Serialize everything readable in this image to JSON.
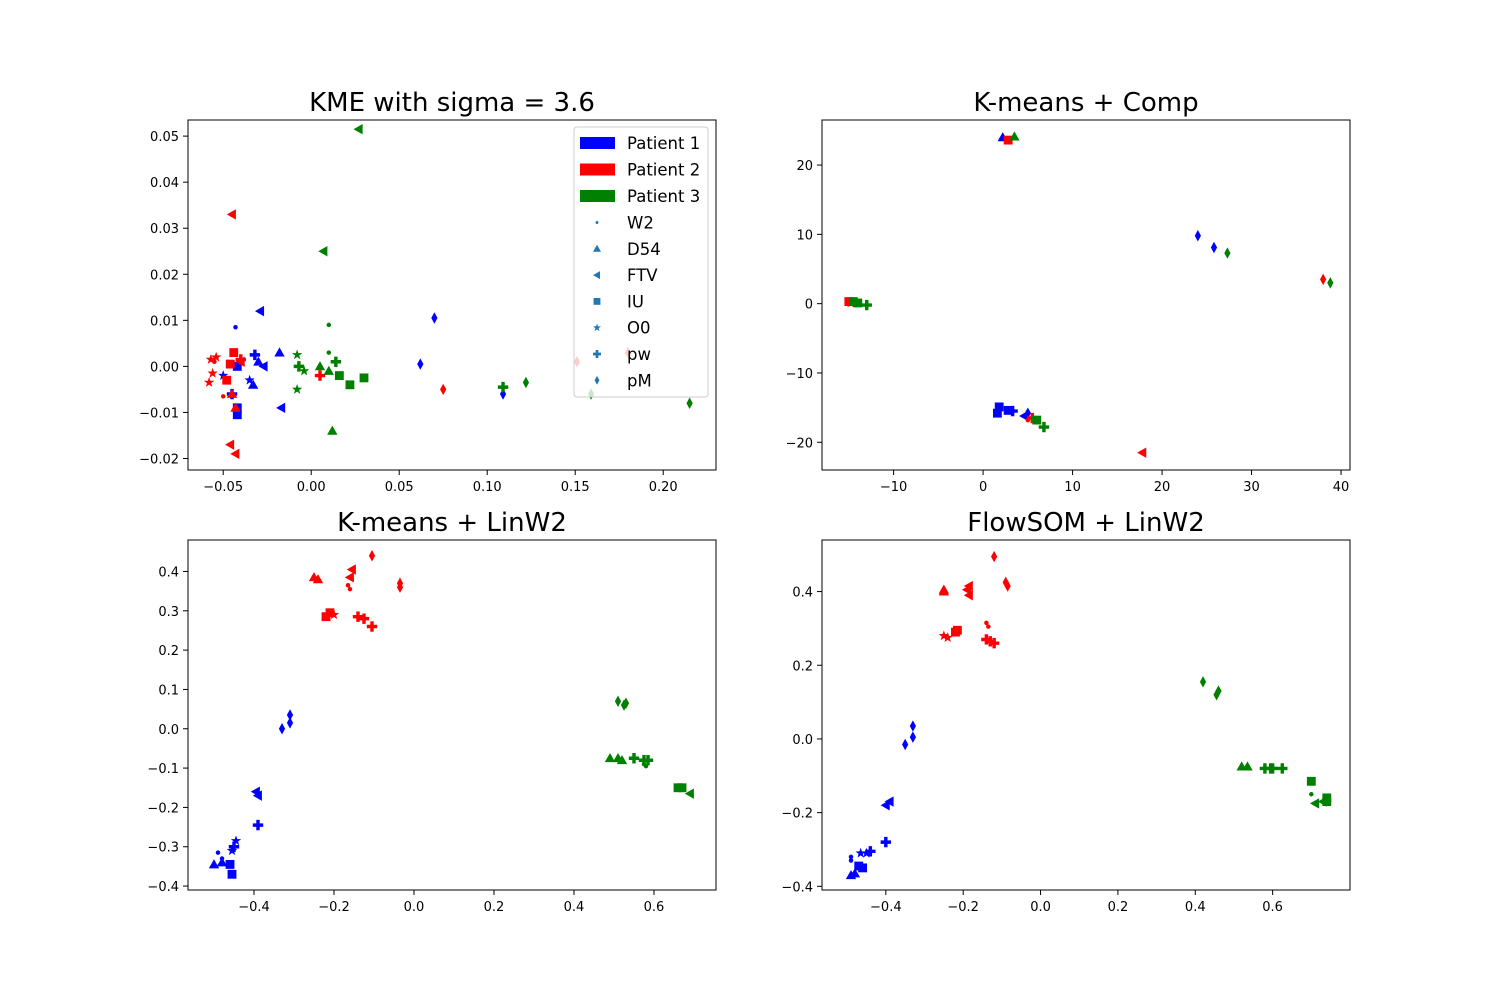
{
  "chart_data": [
    {
      "type": "scatter",
      "title": "KME with sigma = 3.6",
      "xlabel": "",
      "ylabel": "",
      "xlim": [
        -0.07,
        0.23
      ],
      "ylim": [
        -0.0225,
        0.0535
      ],
      "xticks": [
        -0.05,
        0.0,
        0.05,
        0.1,
        0.15,
        0.2
      ],
      "xtick_labels": [
        "−0.05",
        "0.00",
        "0.05",
        "0.10",
        "0.15",
        "0.20"
      ],
      "yticks": [
        -0.02,
        -0.01,
        0.0,
        0.01,
        0.02,
        0.03,
        0.04,
        0.05
      ],
      "ytick_labels": [
        "−0.02",
        "−0.01",
        "0.00",
        "0.01",
        "0.02",
        "0.03",
        "0.04",
        "0.05"
      ],
      "grid": false,
      "legend_position": "top-right",
      "points": [
        [
          "P1",
          "W2",
          -0.043,
          0.0085
        ],
        [
          "P1",
          "D54",
          -0.018,
          0.003
        ],
        [
          "P1",
          "D54",
          -0.03,
          0.001
        ],
        [
          "P1",
          "D54",
          -0.033,
          -0.004
        ],
        [
          "P1",
          "FTV",
          -0.029,
          0.012
        ],
        [
          "P1",
          "FTV",
          -0.017,
          -0.009
        ],
        [
          "P1",
          "FTV",
          -0.027,
          0.0
        ],
        [
          "P1",
          "IU",
          -0.042,
          -0.009
        ],
        [
          "P1",
          "IU",
          -0.042,
          -0.0105
        ],
        [
          "P1",
          "IU",
          -0.042,
          0.0
        ],
        [
          "P1",
          "O0",
          -0.05,
          -0.002
        ],
        [
          "P1",
          "O0",
          -0.035,
          -0.003
        ],
        [
          "P1",
          "pw",
          -0.032,
          0.0025
        ],
        [
          "P1",
          "pw",
          -0.045,
          -0.006
        ],
        [
          "P1",
          "pM",
          0.07,
          0.0105
        ],
        [
          "P1",
          "pM",
          0.062,
          0.0005
        ],
        [
          "P1",
          "pM",
          0.109,
          -0.006
        ],
        [
          "P2",
          "W2",
          -0.05,
          -0.0065
        ],
        [
          "P2",
          "W2",
          -0.055,
          0.001
        ],
        [
          "P2",
          "D54",
          -0.043,
          -0.009
        ],
        [
          "P2",
          "D54",
          -0.045,
          -0.006
        ],
        [
          "P2",
          "FTV",
          -0.045,
          0.033
        ],
        [
          "P2",
          "FTV",
          -0.046,
          -0.017
        ],
        [
          "P2",
          "FTV",
          -0.043,
          -0.019
        ],
        [
          "P2",
          "FTV",
          -0.04,
          0.001
        ],
        [
          "P2",
          "IU",
          -0.044,
          0.003
        ],
        [
          "P2",
          "IU",
          -0.046,
          0.0005
        ],
        [
          "P2",
          "IU",
          -0.048,
          -0.003
        ],
        [
          "P2",
          "O0",
          -0.057,
          0.0015
        ],
        [
          "P2",
          "O0",
          -0.058,
          -0.0035
        ],
        [
          "P2",
          "O0",
          -0.056,
          -0.0015
        ],
        [
          "P2",
          "O0",
          -0.054,
          0.002
        ],
        [
          "P2",
          "pw",
          -0.04,
          0.0015
        ],
        [
          "P2",
          "pw",
          0.005,
          -0.002
        ],
        [
          "P2",
          "pM",
          0.075,
          -0.005
        ],
        [
          "P2",
          "pM",
          0.18,
          0.003
        ],
        [
          "P2",
          "pM",
          0.151,
          0.001
        ],
        [
          "P3",
          "W2",
          0.01,
          0.009
        ],
        [
          "P3",
          "W2",
          0.01,
          0.003
        ],
        [
          "P3",
          "D54",
          0.012,
          -0.014
        ],
        [
          "P3",
          "D54",
          0.005,
          0.0
        ],
        [
          "P3",
          "D54",
          0.01,
          -0.001
        ],
        [
          "P3",
          "FTV",
          0.027,
          0.0515
        ],
        [
          "P3",
          "FTV",
          0.007,
          0.025
        ],
        [
          "P3",
          "IU",
          0.016,
          -0.002
        ],
        [
          "P3",
          "IU",
          0.022,
          -0.004
        ],
        [
          "P3",
          "IU",
          0.03,
          -0.0025
        ],
        [
          "P3",
          "O0",
          -0.008,
          0.0025
        ],
        [
          "P3",
          "O0",
          -0.004,
          -0.001
        ],
        [
          "P3",
          "O0",
          -0.008,
          -0.005
        ],
        [
          "P3",
          "pw",
          -0.007,
          0.0
        ],
        [
          "P3",
          "pw",
          0.014,
          0.001
        ],
        [
          "P3",
          "pw",
          0.109,
          -0.0045
        ],
        [
          "P3",
          "pM",
          0.122,
          -0.0035
        ],
        [
          "P3",
          "pM",
          0.159,
          -0.006
        ],
        [
          "P3",
          "pM",
          0.215,
          -0.008
        ]
      ]
    },
    {
      "type": "scatter",
      "title": "K-means + Comp",
      "xlabel": "",
      "ylabel": "",
      "xlim": [
        -18,
        41
      ],
      "ylim": [
        -24,
        26.5
      ],
      "xticks": [
        -10,
        0,
        10,
        20,
        30,
        40
      ],
      "xtick_labels": [
        "−10",
        "0",
        "10",
        "20",
        "30",
        "40"
      ],
      "yticks": [
        -20,
        -10,
        0,
        10,
        20
      ],
      "ytick_labels": [
        "−20",
        "−10",
        "0",
        "10",
        "20"
      ],
      "grid": false,
      "points": [
        [
          "P1",
          "D54",
          2.2,
          24
        ],
        [
          "P1",
          "IU",
          1.6,
          -15.8
        ],
        [
          "P1",
          "IU",
          1.8,
          -14.9
        ],
        [
          "P1",
          "IU",
          2.8,
          -15.4
        ],
        [
          "P1",
          "pw",
          3.3,
          -15.5
        ],
        [
          "P1",
          "pM",
          24,
          9.8
        ],
        [
          "P1",
          "pM",
          25.8,
          8.1
        ],
        [
          "P1",
          "pM",
          5,
          -15.8
        ],
        [
          "P1",
          "FTV",
          4.6,
          -16.2
        ],
        [
          "P2",
          "IU",
          -15,
          0.3
        ],
        [
          "P2",
          "IU",
          2.8,
          23.6
        ],
        [
          "P2",
          "pM",
          38,
          3.5
        ],
        [
          "P2",
          "FTV",
          17.8,
          -21.5
        ],
        [
          "P2",
          "pw",
          5.5,
          -16.5
        ],
        [
          "P2",
          "W2",
          5,
          -16.8
        ],
        [
          "P2",
          "O0",
          -14.8,
          0.1
        ],
        [
          "P3",
          "D54",
          3.5,
          24.1
        ],
        [
          "P3",
          "pM",
          27.3,
          7.3
        ],
        [
          "P3",
          "pM",
          38.8,
          3
        ],
        [
          "P3",
          "IU",
          -14.5,
          0.3
        ],
        [
          "P3",
          "IU",
          -14,
          0.1
        ],
        [
          "P3",
          "pw",
          -13,
          -0.2
        ],
        [
          "P3",
          "pw",
          6.8,
          -17.8
        ],
        [
          "P3",
          "IU",
          6,
          -16.8
        ],
        [
          "P3",
          "W2",
          5.6,
          -16.5
        ]
      ]
    },
    {
      "type": "scatter",
      "title": "K-means + LinW2",
      "xlabel": "",
      "ylabel": "",
      "xlim": [
        -0.565,
        0.755
      ],
      "ylim": [
        -0.41,
        0.48
      ],
      "xticks": [
        -0.4,
        -0.2,
        0.0,
        0.2,
        0.4,
        0.6
      ],
      "xtick_labels": [
        "−0.4",
        "−0.2",
        "0.0",
        "0.2",
        "0.4",
        "0.6"
      ],
      "yticks": [
        -0.4,
        -0.3,
        -0.2,
        -0.1,
        0.0,
        0.1,
        0.2,
        0.3,
        0.4
      ],
      "ytick_labels": [
        "−0.4",
        "−0.3",
        "−0.2",
        "−0.1",
        "0.0",
        "0.1",
        "0.2",
        "0.3",
        "0.4"
      ],
      "grid": false,
      "points": [
        [
          "P1",
          "W2",
          -0.49,
          -0.315
        ],
        [
          "P1",
          "W2",
          -0.48,
          -0.33
        ],
        [
          "P1",
          "D54",
          -0.5,
          -0.345
        ],
        [
          "P1",
          "D54",
          -0.48,
          -0.34
        ],
        [
          "P1",
          "IU",
          -0.46,
          -0.345
        ],
        [
          "P1",
          "IU",
          -0.455,
          -0.37
        ],
        [
          "P1",
          "O0",
          -0.455,
          -0.31
        ],
        [
          "P1",
          "O0",
          -0.445,
          -0.285
        ],
        [
          "P1",
          "pw",
          -0.45,
          -0.3
        ],
        [
          "P1",
          "pw",
          -0.39,
          -0.245
        ],
        [
          "P1",
          "FTV",
          -0.39,
          -0.17
        ],
        [
          "P1",
          "FTV",
          -0.395,
          -0.16
        ],
        [
          "P1",
          "pM",
          -0.33,
          0.0
        ],
        [
          "P1",
          "pM",
          -0.31,
          0.015
        ],
        [
          "P1",
          "pM",
          -0.31,
          0.035
        ],
        [
          "P2",
          "D54",
          -0.25,
          0.385
        ],
        [
          "P2",
          "D54",
          -0.24,
          0.38
        ],
        [
          "P2",
          "IU",
          -0.22,
          0.285
        ],
        [
          "P2",
          "IU",
          -0.21,
          0.295
        ],
        [
          "P2",
          "O0",
          -0.2,
          0.29
        ],
        [
          "P2",
          "W2",
          -0.165,
          0.365
        ],
        [
          "P2",
          "W2",
          -0.16,
          0.355
        ],
        [
          "P2",
          "FTV",
          -0.16,
          0.385
        ],
        [
          "P2",
          "FTV",
          -0.155,
          0.405
        ],
        [
          "P2",
          "pw",
          -0.14,
          0.285
        ],
        [
          "P2",
          "pw",
          -0.125,
          0.28
        ],
        [
          "P2",
          "pw",
          -0.105,
          0.26
        ],
        [
          "P2",
          "pM",
          -0.105,
          0.44
        ],
        [
          "P2",
          "pM",
          -0.035,
          0.36
        ],
        [
          "P2",
          "pM",
          -0.035,
          0.37
        ],
        [
          "P3",
          "pM",
          0.51,
          0.07
        ],
        [
          "P3",
          "pM",
          0.525,
          0.06
        ],
        [
          "P3",
          "pM",
          0.53,
          0.065
        ],
        [
          "P3",
          "D54",
          0.49,
          -0.075
        ],
        [
          "P3",
          "D54",
          0.51,
          -0.075
        ],
        [
          "P3",
          "D54",
          0.52,
          -0.08
        ],
        [
          "P3",
          "pw",
          0.55,
          -0.075
        ],
        [
          "P3",
          "pw",
          0.575,
          -0.08
        ],
        [
          "P3",
          "pw",
          0.585,
          -0.08
        ],
        [
          "P3",
          "W2",
          0.575,
          -0.09
        ],
        [
          "P3",
          "W2",
          0.58,
          -0.095
        ],
        [
          "P3",
          "IU",
          0.66,
          -0.15
        ],
        [
          "P3",
          "IU",
          0.67,
          -0.15
        ],
        [
          "P3",
          "FTV",
          0.69,
          -0.165
        ]
      ]
    },
    {
      "type": "scatter",
      "title": "FlowSOM + LinW2",
      "xlabel": "",
      "ylabel": "",
      "xlim": [
        -0.565,
        0.8
      ],
      "ylim": [
        -0.41,
        0.54
      ],
      "xticks": [
        -0.4,
        -0.2,
        0.0,
        0.2,
        0.4,
        0.6
      ],
      "xtick_labels": [
        "−0.4",
        "−0.2",
        "0.0",
        "0.2",
        "0.4",
        "0.6"
      ],
      "yticks": [
        -0.4,
        -0.2,
        0.0,
        0.2,
        0.4
      ],
      "ytick_labels": [
        "−0.4",
        "−0.2",
        "0.0",
        "0.2",
        "0.4"
      ],
      "grid": false,
      "points": [
        [
          "P1",
          "W2",
          -0.49,
          -0.32
        ],
        [
          "P1",
          "W2",
          -0.49,
          -0.33
        ],
        [
          "P1",
          "D54",
          -0.49,
          -0.37
        ],
        [
          "P1",
          "D54",
          -0.48,
          -0.365
        ],
        [
          "P1",
          "IU",
          -0.47,
          -0.345
        ],
        [
          "P1",
          "IU",
          -0.46,
          -0.35
        ],
        [
          "P1",
          "O0",
          -0.465,
          -0.31
        ],
        [
          "P1",
          "O0",
          -0.45,
          -0.31
        ],
        [
          "P1",
          "pw",
          -0.44,
          -0.305
        ],
        [
          "P1",
          "pw",
          -0.4,
          -0.28
        ],
        [
          "P1",
          "FTV",
          -0.4,
          -0.18
        ],
        [
          "P1",
          "FTV",
          -0.39,
          -0.17
        ],
        [
          "P1",
          "pM",
          -0.35,
          -0.015
        ],
        [
          "P1",
          "pM",
          -0.33,
          0.005
        ],
        [
          "P1",
          "pM",
          -0.33,
          0.035
        ],
        [
          "P2",
          "D54",
          -0.25,
          0.4
        ],
        [
          "P2",
          "D54",
          -0.25,
          0.405
        ],
        [
          "P2",
          "O0",
          -0.25,
          0.28
        ],
        [
          "P2",
          "O0",
          -0.24,
          0.275
        ],
        [
          "P2",
          "IU",
          -0.22,
          0.29
        ],
        [
          "P2",
          "IU",
          -0.215,
          0.295
        ],
        [
          "P2",
          "FTV",
          -0.19,
          0.405
        ],
        [
          "P2",
          "FTV",
          -0.185,
          0.39
        ],
        [
          "P2",
          "FTV",
          -0.185,
          0.415
        ],
        [
          "P2",
          "W2",
          -0.14,
          0.315
        ],
        [
          "P2",
          "W2",
          -0.135,
          0.305
        ],
        [
          "P2",
          "pw",
          -0.14,
          0.27
        ],
        [
          "P2",
          "pw",
          -0.13,
          0.265
        ],
        [
          "P2",
          "pw",
          -0.12,
          0.26
        ],
        [
          "P2",
          "pM",
          -0.12,
          0.495
        ],
        [
          "P2",
          "pM",
          -0.09,
          0.425
        ],
        [
          "P2",
          "pM",
          -0.085,
          0.415
        ],
        [
          "P3",
          "pM",
          0.42,
          0.155
        ],
        [
          "P3",
          "pM",
          0.455,
          0.12
        ],
        [
          "P3",
          "pM",
          0.46,
          0.13
        ],
        [
          "P3",
          "D54",
          0.52,
          -0.075
        ],
        [
          "P3",
          "D54",
          0.535,
          -0.075
        ],
        [
          "P3",
          "pw",
          0.58,
          -0.08
        ],
        [
          "P3",
          "pw",
          0.595,
          -0.08
        ],
        [
          "P3",
          "pw",
          0.6,
          -0.08
        ],
        [
          "P3",
          "pw",
          0.625,
          -0.08
        ],
        [
          "P3",
          "IU",
          0.7,
          -0.115
        ],
        [
          "P3",
          "W2",
          0.7,
          -0.15
        ],
        [
          "P3",
          "IU",
          0.74,
          -0.16
        ],
        [
          "P3",
          "IU",
          0.74,
          -0.17
        ],
        [
          "P3",
          "FTV",
          0.71,
          -0.175
        ],
        [
          "P3",
          "FTV",
          0.73,
          -0.17
        ]
      ]
    }
  ],
  "legend": {
    "patients": [
      {
        "key": "P1",
        "label": "Patient 1",
        "color": "#0000ff"
      },
      {
        "key": "P2",
        "label": "Patient 2",
        "color": "#ff0000"
      },
      {
        "key": "P3",
        "label": "Patient 3",
        "color": "#008000"
      }
    ],
    "markers": [
      {
        "key": "W2",
        "label": "W2",
        "shape": "point"
      },
      {
        "key": "D54",
        "label": "D54",
        "shape": "triangle-up"
      },
      {
        "key": "FTV",
        "label": "FTV",
        "shape": "triangle-left"
      },
      {
        "key": "IU",
        "label": "IU",
        "shape": "square"
      },
      {
        "key": "O0",
        "label": "O0",
        "shape": "star"
      },
      {
        "key": "pw",
        "label": "pw",
        "shape": "plus-filled"
      },
      {
        "key": "pM",
        "label": "pM",
        "shape": "thin-diamond"
      }
    ],
    "marker_color": "#1f77b4"
  }
}
